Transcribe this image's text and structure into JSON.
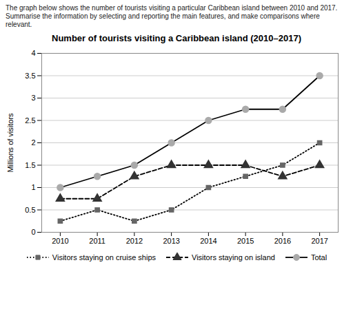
{
  "chart_data": {
    "type": "line",
    "title": "Number of tourists visiting a Caribbean island (2010–2017)",
    "subtitle": [
      "The graph below shows the number of tourists visiting a particular Caribbean island between 2010 and 2017.",
      "Summarise the information by selecting and reporting the main features, and make comparisons where relevant."
    ],
    "ylabel": "Millions of visitors",
    "x": [
      2010,
      2011,
      2012,
      2013,
      2014,
      2015,
      2016,
      2017
    ],
    "series": [
      {
        "name": "Visitors staying on cruise ships",
        "color": "#666666",
        "marker": "square",
        "line_style": "dotted",
        "values": [
          0.25,
          0.5,
          0.25,
          0.5,
          1.0,
          1.25,
          1.5,
          2.0
        ]
      },
      {
        "name": "Visitors staying on island",
        "color": "#333333",
        "marker": "triangle",
        "line_style": "dashed",
        "values": [
          0.75,
          0.75,
          1.25,
          1.5,
          1.5,
          1.5,
          1.25,
          1.5
        ]
      },
      {
        "name": "Total",
        "color": "#aaaaaa",
        "marker": "circle",
        "line_style": "solid",
        "values": [
          1.0,
          1.25,
          1.5,
          2.0,
          2.5,
          2.75,
          2.75,
          3.5
        ]
      }
    ],
    "color": "black",
    "xlim": [
      2009.5,
      2017.5
    ],
    "xticks": [
      2010,
      2011,
      2012,
      2013,
      2014,
      2015,
      2016,
      2017
    ],
    "ylim": [
      0,
      4
    ],
    "yticks": [
      0,
      0.5,
      1.0,
      1.5,
      2.0,
      2.5,
      3.0,
      3.5,
      4.0
    ],
    "grid": true,
    "legend": "bottom"
  }
}
